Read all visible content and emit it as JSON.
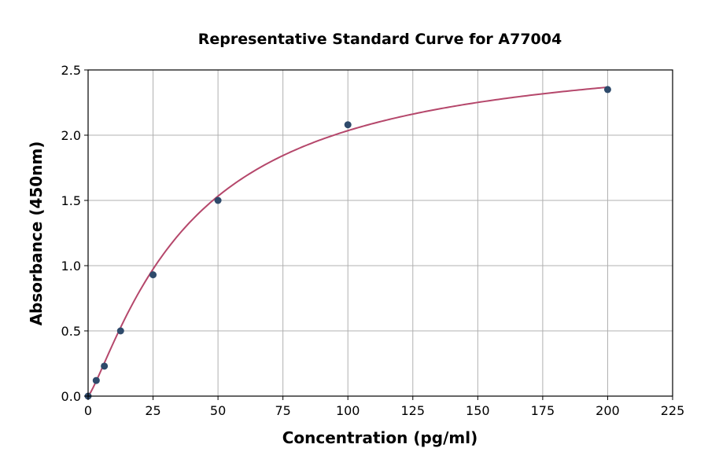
{
  "chart_data": {
    "type": "scatter",
    "title": "Representative Standard Curve for A77004",
    "xlabel": "Concentration (pg/ml)",
    "ylabel": "Absorbance (450nm)",
    "xlim": [
      0,
      225
    ],
    "ylim": [
      0,
      2.5
    ],
    "xticks": [
      "0",
      "25",
      "50",
      "75",
      "100",
      "125",
      "150",
      "175",
      "200",
      "225"
    ],
    "yticks": [
      "0.0",
      "0.5",
      "1.0",
      "1.5",
      "2.0",
      "2.5"
    ],
    "grid": true,
    "series": [
      {
        "x": [
          0,
          3.125,
          6.25,
          12.5,
          25,
          50,
          100,
          200
        ],
        "y": [
          0.0,
          0.12,
          0.23,
          0.5,
          0.93,
          1.5,
          2.08,
          2.35
        ],
        "fit_curve": true
      }
    ],
    "colors": {
      "points": "#2e4a6b",
      "curve": "#b5476b",
      "grid": "#b0b0b0"
    }
  }
}
